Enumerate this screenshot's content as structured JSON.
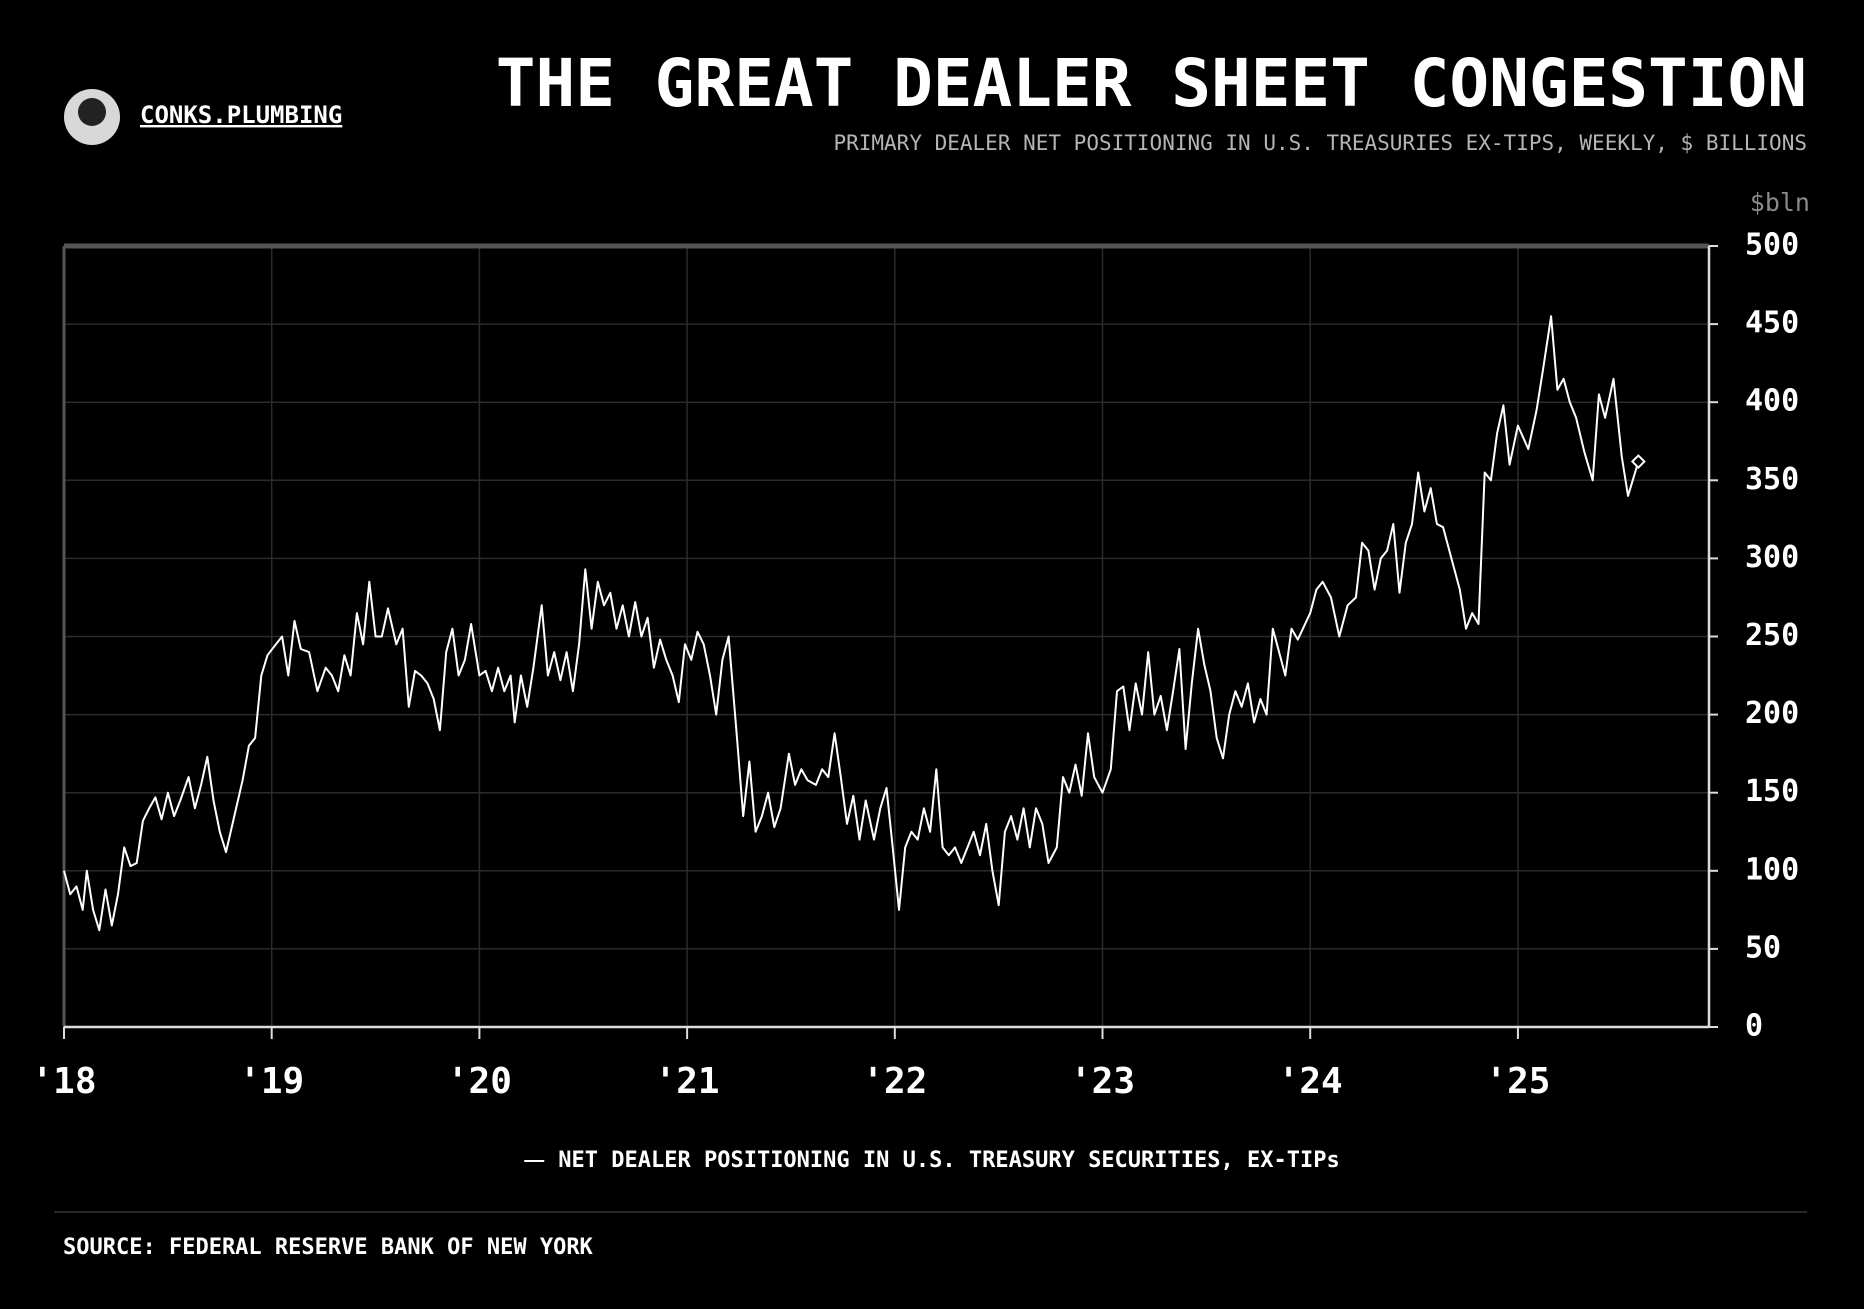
{
  "brand": "CONKS.PLUMBING",
  "source": "SOURCE: FEDERAL RESERVE BANK OF NEW YORK",
  "chart_data": {
    "type": "line",
    "title": "THE GREAT DEALER SHEET CONGESTION",
    "subtitle": "PRIMARY DEALER NET POSITIONING IN U.S. TREASURIES EX-TIPS, WEEKLY, $ BILLIONS",
    "y_unit_label": "$bln",
    "x": [
      2018.0,
      2018.03,
      2018.06,
      2018.09,
      2018.11,
      2018.14,
      2018.17,
      2018.2,
      2018.23,
      2018.26,
      2018.29,
      2018.32,
      2018.35,
      2018.38,
      2018.41,
      2018.44,
      2018.47,
      2018.5,
      2018.53,
      2018.56,
      2018.6,
      2018.63,
      2018.66,
      2018.69,
      2018.72,
      2018.75,
      2018.78,
      2018.82,
      2018.86,
      2018.89,
      2018.92,
      2018.95,
      2018.98,
      2019.02,
      2019.05,
      2019.08,
      2019.11,
      2019.14,
      2019.18,
      2019.22,
      2019.26,
      2019.29,
      2019.32,
      2019.35,
      2019.38,
      2019.41,
      2019.44,
      2019.47,
      2019.5,
      2019.53,
      2019.56,
      2019.6,
      2019.63,
      2019.66,
      2019.69,
      2019.72,
      2019.75,
      2019.78,
      2019.81,
      2019.84,
      2019.87,
      2019.9,
      2019.93,
      2019.96,
      2020.0,
      2020.03,
      2020.06,
      2020.09,
      2020.12,
      2020.15,
      2020.17,
      2020.2,
      2020.23,
      2020.26,
      2020.3,
      2020.33,
      2020.36,
      2020.39,
      2020.42,
      2020.45,
      2020.48,
      2020.51,
      2020.54,
      2020.57,
      2020.6,
      2020.63,
      2020.66,
      2020.69,
      2020.72,
      2020.75,
      2020.78,
      2020.81,
      2020.84,
      2020.87,
      2020.9,
      2020.93,
      2020.96,
      2020.99,
      2021.02,
      2021.05,
      2021.08,
      2021.11,
      2021.14,
      2021.17,
      2021.2,
      2021.24,
      2021.27,
      2021.3,
      2021.33,
      2021.36,
      2021.39,
      2021.42,
      2021.45,
      2021.49,
      2021.52,
      2021.55,
      2021.58,
      2021.62,
      2021.65,
      2021.68,
      2021.71,
      2021.74,
      2021.77,
      2021.8,
      2021.83,
      2021.86,
      2021.9,
      2021.93,
      2021.96,
      2021.99,
      2022.02,
      2022.05,
      2022.08,
      2022.11,
      2022.14,
      2022.17,
      2022.2,
      2022.23,
      2022.26,
      2022.29,
      2022.32,
      2022.35,
      2022.38,
      2022.41,
      2022.44,
      2022.47,
      2022.5,
      2022.53,
      2022.56,
      2022.59,
      2022.62,
      2022.65,
      2022.68,
      2022.71,
      2022.74,
      2022.78,
      2022.81,
      2022.84,
      2022.87,
      2022.9,
      2022.93,
      2022.96,
      2023.0,
      2023.04,
      2023.07,
      2023.1,
      2023.13,
      2023.16,
      2023.19,
      2023.22,
      2023.25,
      2023.28,
      2023.31,
      2023.34,
      2023.37,
      2023.4,
      2023.43,
      2023.46,
      2023.49,
      2023.52,
      2023.55,
      2023.58,
      2023.61,
      2023.64,
      2023.67,
      2023.7,
      2023.73,
      2023.76,
      2023.79,
      2023.82,
      2023.85,
      2023.88,
      2023.91,
      2023.94,
      2024.0,
      2024.03,
      2024.06,
      2024.1,
      2024.14,
      2024.18,
      2024.22,
      2024.25,
      2024.28,
      2024.31,
      2024.34,
      2024.37,
      2024.4,
      2024.43,
      2024.46,
      2024.49,
      2024.52,
      2024.55,
      2024.58,
      2024.61,
      2024.64,
      2024.68,
      2024.72,
      2024.75,
      2024.78,
      2024.81,
      2024.84,
      2024.87,
      2024.9,
      2024.93,
      2024.96,
      2025.0,
      2025.05,
      2025.09,
      2025.12,
      2025.16,
      2025.19,
      2025.22,
      2025.25,
      2025.28,
      2025.32,
      2025.36,
      2025.39,
      2025.42,
      2025.46,
      2025.5,
      2025.53,
      2025.58
    ],
    "series": [
      {
        "name": "NET DEALER POSITIONING IN U.S. TREASURY SECURITIES, EX-TIPs",
        "color": "#ffffff",
        "values": [
          100,
          85,
          90,
          75,
          100,
          75,
          62,
          88,
          65,
          85,
          115,
          103,
          105,
          132,
          140,
          147,
          133,
          150,
          135,
          145,
          160,
          140,
          155,
          173,
          145,
          125,
          112,
          135,
          158,
          180,
          185,
          225,
          238,
          245,
          250,
          225,
          260,
          242,
          240,
          215,
          230,
          225,
          215,
          238,
          225,
          265,
          245,
          285,
          250,
          250,
          268,
          245,
          255,
          205,
          228,
          225,
          220,
          210,
          190,
          240,
          255,
          225,
          235,
          258,
          225,
          228,
          215,
          230,
          215,
          225,
          195,
          225,
          205,
          230,
          270,
          225,
          240,
          222,
          240,
          215,
          245,
          293,
          255,
          285,
          270,
          278,
          255,
          270,
          250,
          272,
          250,
          262,
          230,
          248,
          235,
          225,
          208,
          245,
          235,
          253,
          245,
          225,
          200,
          235,
          250,
          185,
          135,
          170,
          125,
          135,
          150,
          128,
          140,
          175,
          155,
          165,
          158,
          155,
          165,
          160,
          188,
          160,
          130,
          148,
          120,
          145,
          120,
          140,
          153,
          115,
          75,
          115,
          125,
          120,
          140,
          125,
          165,
          115,
          110,
          115,
          105,
          115,
          125,
          110,
          130,
          100,
          78,
          125,
          135,
          120,
          140,
          115,
          140,
          130,
          105,
          115,
          160,
          150,
          168,
          148,
          188,
          160,
          150,
          165,
          215,
          218,
          190,
          220,
          200,
          240,
          200,
          212,
          190,
          215,
          242,
          178,
          220,
          255,
          232,
          215,
          185,
          172,
          200,
          215,
          205,
          220,
          195,
          210,
          200,
          255,
          240,
          225,
          255,
          248,
          265,
          280,
          285,
          275,
          250,
          270,
          275,
          310,
          305,
          280,
          300,
          305,
          322,
          278,
          310,
          322,
          355,
          330,
          345,
          322,
          320,
          300,
          280,
          255,
          265,
          258,
          355,
          350,
          380,
          398,
          360,
          385,
          370,
          395,
          420,
          455,
          408,
          415,
          400,
          390,
          368,
          350,
          405,
          390,
          415,
          365,
          340,
          362
        ]
      }
    ],
    "xlim": [
      2018,
      2025.92
    ],
    "xticks": [
      {
        "value": 2018,
        "label": "'18"
      },
      {
        "value": 2019,
        "label": "'19"
      },
      {
        "value": 2020,
        "label": "'20"
      },
      {
        "value": 2021,
        "label": "'21"
      },
      {
        "value": 2022,
        "label": "'22"
      },
      {
        "value": 2023,
        "label": "'23"
      },
      {
        "value": 2024,
        "label": "'24"
      },
      {
        "value": 2025,
        "label": "'25"
      }
    ],
    "ylim": [
      0,
      500
    ],
    "yticks": [
      0,
      50,
      100,
      150,
      200,
      250,
      300,
      350,
      400,
      450,
      500
    ],
    "grid": true
  }
}
